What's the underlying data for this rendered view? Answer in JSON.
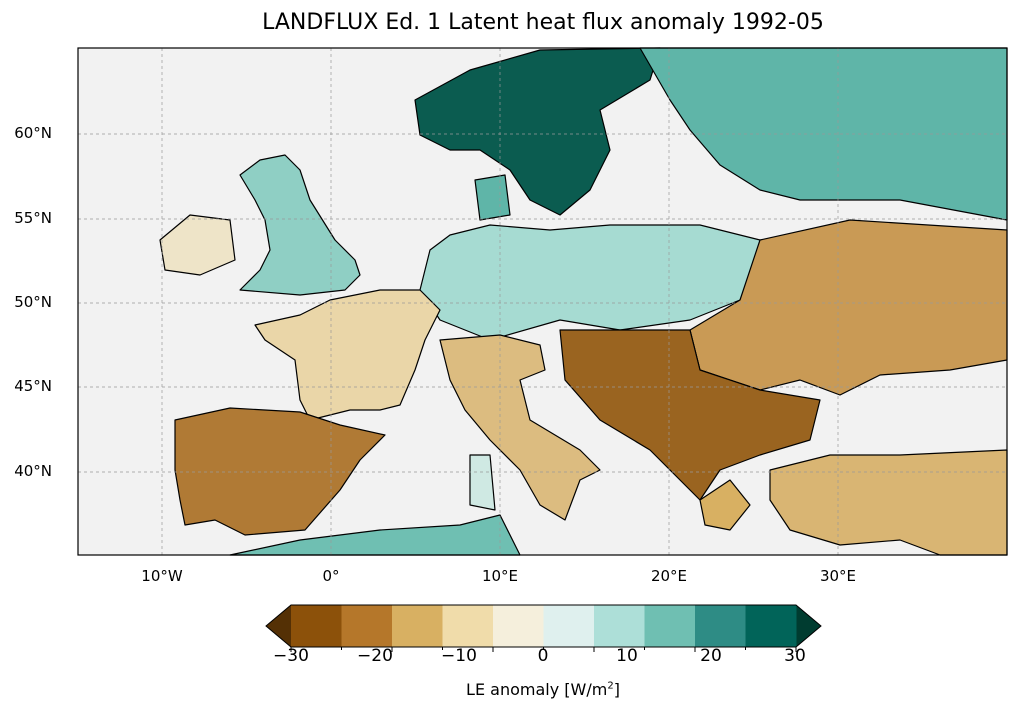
{
  "title": "LANDFLUX Ed. 1 Latent heat flux anomaly 1992-05",
  "map": {
    "lon_range": [
      -15,
      40
    ],
    "lat_range": [
      35,
      65
    ],
    "ocean_color": "#f2f2f2",
    "lat_labels": [
      "60°N",
      "55°N",
      "50°N",
      "45°N",
      "40°N"
    ],
    "lon_labels": [
      "10°W",
      "0°",
      "10°E",
      "20°E",
      "30°E"
    ]
  },
  "colorbar": {
    "label_prefix": "LE anomaly [W/m",
    "label_sup": "2",
    "label_suffix": "]",
    "ticks": [
      "−30",
      "−20",
      "−10",
      "0",
      "10",
      "20",
      "30"
    ],
    "range": [
      -30,
      30
    ],
    "step": 5,
    "extend": "both",
    "colors": [
      "#543005",
      "#8c510a",
      "#b5772a",
      "#d8b062",
      "#f0dcaa",
      "#f5efdc",
      "#dff0ee",
      "#addfd8",
      "#6fbfb2",
      "#2e8c85",
      "#016459",
      "#003c30"
    ]
  }
}
